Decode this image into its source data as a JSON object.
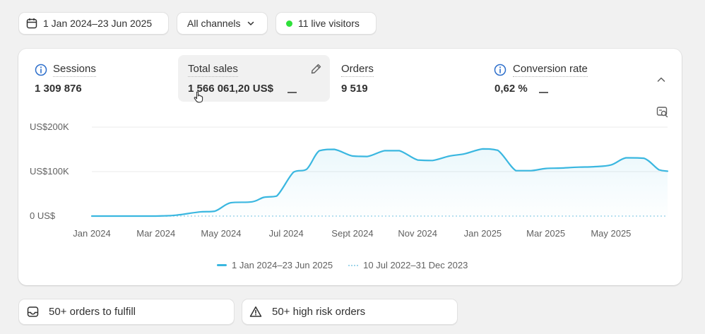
{
  "filters": {
    "date_range": "1 Jan 2024–23 Jun 2025",
    "channel": "All channels",
    "live_visitors": "11 live visitors"
  },
  "metrics": {
    "sessions": {
      "label": "Sessions",
      "value": "1 309 876"
    },
    "total_sales": {
      "label": "Total sales",
      "value": "1 566 061,20 US$"
    },
    "orders": {
      "label": "Orders",
      "value": "9 519"
    },
    "conversion_rate": {
      "label": "Conversion rate",
      "value": "0,62 %"
    }
  },
  "legend": {
    "current": "1 Jan 2024–23 Jun 2025",
    "comparison": "10 Jul 2022–31 Dec 2023"
  },
  "tasks": {
    "fulfill": "50+ orders to fulfill",
    "high_risk": "50+ high risk orders"
  },
  "colors": {
    "accent_line": "#3ab7e0",
    "live_dot": "#2ee03a"
  },
  "chart_data": {
    "type": "area",
    "y_ticks": [
      "US$200K",
      "US$100K",
      "0 US$"
    ],
    "ylim": [
      0,
      200000
    ],
    "x_ticks": [
      "Jan 2024",
      "Mar 2024",
      "May 2024",
      "Jul 2024",
      "Sept 2024",
      "Nov 2024",
      "Jan 2025",
      "Mar 2025",
      "May 2025"
    ],
    "grid": true,
    "legend_position": "bottom",
    "series": [
      {
        "name": "1 Jan 2024–23 Jun 2025",
        "style": "solid",
        "x": [
          "2024-01-01",
          "2024-01-15",
          "2024-02-01",
          "2024-02-15",
          "2024-03-01",
          "2024-03-08",
          "2024-03-20",
          "2024-04-10",
          "2024-04-25",
          "2024-05-10",
          "2024-05-30",
          "2024-06-10",
          "2024-06-22",
          "2024-07-08",
          "2024-07-20",
          "2024-08-01",
          "2024-08-15",
          "2024-09-01",
          "2024-09-15",
          "2024-10-01",
          "2024-10-15",
          "2024-11-01",
          "2024-11-15",
          "2024-12-01",
          "2024-12-15",
          "2025-01-01",
          "2025-01-15",
          "2025-02-01",
          "2025-02-15",
          "2025-03-01",
          "2025-03-15",
          "2025-04-01",
          "2025-04-15",
          "2025-05-01",
          "2025-05-15",
          "2025-06-01",
          "2025-06-15",
          "2025-06-23"
        ],
        "values": [
          0,
          0,
          0,
          0,
          0,
          500,
          2000,
          9000,
          11000,
          30000,
          32000,
          42000,
          45000,
          99000,
          105000,
          147000,
          150000,
          135000,
          134000,
          147000,
          147000,
          126000,
          125000,
          135000,
          140000,
          151000,
          148000,
          102000,
          102000,
          107000,
          108000,
          110000,
          111000,
          115000,
          131000,
          130000,
          104000,
          101000
        ]
      },
      {
        "name": "10 Jul 2022–31 Dec 2023",
        "style": "dotted",
        "x": [
          "2024-01-01",
          "2025-06-23"
        ],
        "values": [
          0,
          0
        ]
      }
    ]
  }
}
